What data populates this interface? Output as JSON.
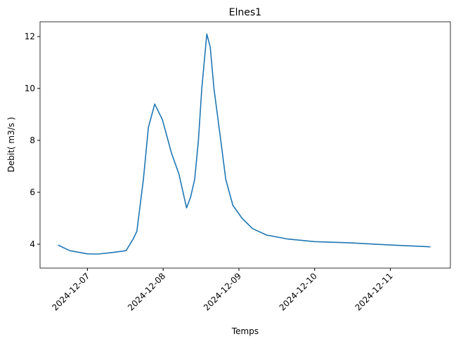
{
  "chart_data": {
    "type": "line",
    "title": "Elnes1",
    "x_label": "Temps",
    "y_label": "Debit( m3/s )",
    "x": [
      "2024-12-06T14:40",
      "2024-12-06T18:25",
      "2024-12-07T00:00",
      "2024-12-07T03:20",
      "2024-12-07T07:50",
      "2024-12-07T12:15",
      "2024-12-07T14:30",
      "2024-12-07T15:40",
      "2024-12-07T17:45",
      "2024-12-07T19:20",
      "2024-12-07T21:20",
      "2024-12-07T23:45",
      "2024-12-08T02:40",
      "2024-12-08T05:00",
      "2024-12-08T07:25",
      "2024-12-08T08:40",
      "2024-12-08T10:00",
      "2024-12-08T11:10",
      "2024-12-08T12:15",
      "2024-12-08T13:50",
      "2024-12-08T14:55",
      "2024-12-08T16:05",
      "2024-12-08T18:15",
      "2024-12-08T19:50",
      "2024-12-08T22:05",
      "2024-12-09T01:00",
      "2024-12-09T04:20",
      "2024-12-09T08:50",
      "2024-12-09T15:30",
      "2024-12-10T00:00",
      "2024-12-10T11:35",
      "2024-12-11T00:00",
      "2024-12-11T12:40"
    ],
    "series": [
      {
        "name": "Elnes1",
        "color": "#1f77b4",
        "values": [
          3.97,
          3.75,
          3.63,
          3.62,
          3.68,
          3.75,
          4.2,
          4.5,
          6.5,
          8.5,
          9.4,
          8.8,
          7.5,
          6.7,
          5.4,
          5.8,
          6.5,
          8.0,
          10.0,
          12.1,
          11.6,
          10.0,
          8.0,
          6.5,
          5.5,
          5.0,
          4.6,
          4.35,
          4.2,
          4.1,
          4.05,
          3.97,
          3.9
        ]
      }
    ],
    "xlim": [
      "2024-12-06T09:00",
      "2024-12-11T19:00"
    ],
    "xticks": [
      "2024-12-07",
      "2024-12-08",
      "2024-12-09",
      "2024-12-10",
      "2024-12-11"
    ],
    "ylim": [
      3.08,
      12.57
    ],
    "yticks": [
      4,
      6,
      8,
      10,
      12
    ],
    "grid": false
  }
}
